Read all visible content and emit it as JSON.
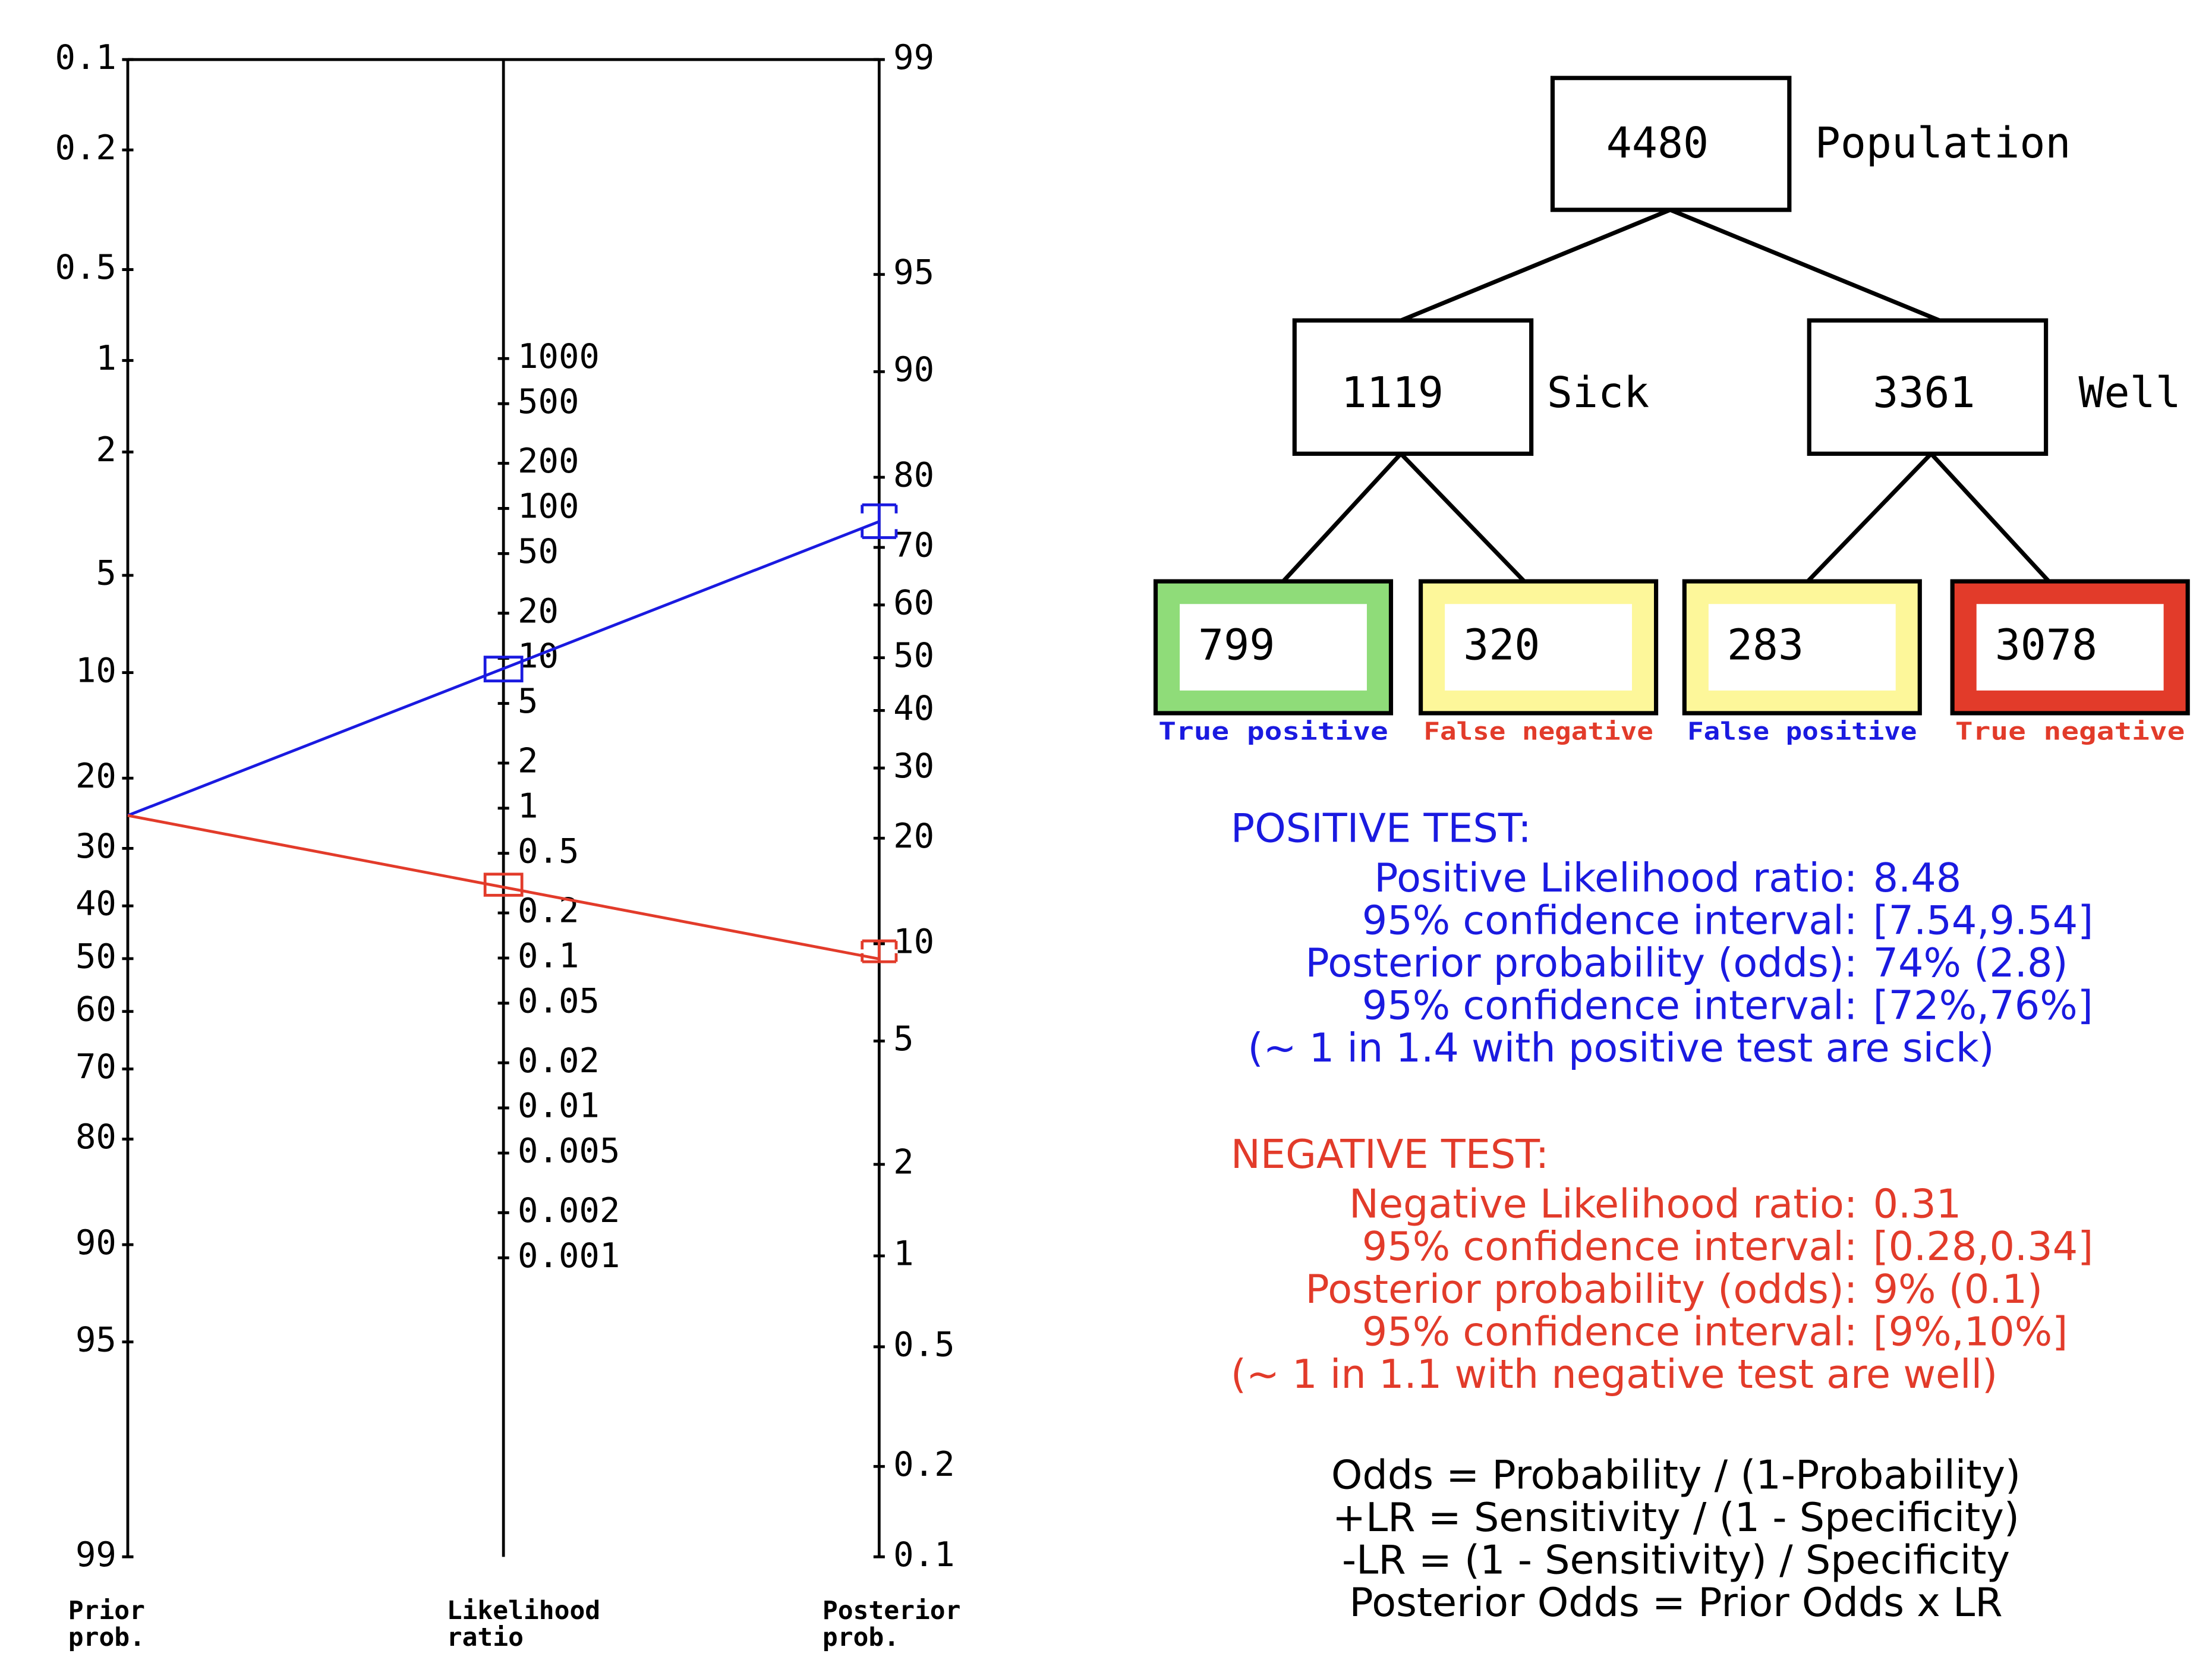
{
  "nomogram": {
    "prior_axis": {
      "ticks": [
        0.1,
        0.2,
        0.5,
        1,
        2,
        5,
        10,
        20,
        30,
        40,
        50,
        60,
        70,
        80,
        90,
        95,
        99
      ],
      "label": [
        "Prior",
        "prob."
      ]
    },
    "lr_axis": {
      "ticks": [
        1000,
        500,
        200,
        100,
        50,
        20,
        10,
        5,
        2,
        1,
        0.5,
        0.2,
        0.1,
        0.05,
        0.02,
        0.01,
        0.005,
        0.002,
        0.001
      ],
      "label": [
        "Likelihood",
        "ratio"
      ]
    },
    "posterior_axis": {
      "ticks": [
        99,
        95,
        90,
        80,
        70,
        60,
        50,
        40,
        30,
        20,
        10,
        5,
        2,
        1,
        0.5,
        0.2,
        0.1
      ],
      "label": [
        "Posterior",
        "prob."
      ]
    }
  },
  "tree": {
    "population": {
      "count": "4480",
      "label": "Population"
    },
    "sick": {
      "count": "1119",
      "label": "Sick"
    },
    "well": {
      "count": "3361",
      "label": "Well"
    },
    "leaves": [
      {
        "count": "799",
        "label": "True positive"
      },
      {
        "count": "320",
        "label": "False negative"
      },
      {
        "count": "283",
        "label": "False positive"
      },
      {
        "count": "3078",
        "label": "True negative"
      }
    ]
  },
  "positive_test": {
    "heading": "POSITIVE TEST:",
    "rows": [
      {
        "label": "Positive Likelihood ratio:",
        "value": "8.48"
      },
      {
        "label": "95% confidence interval:",
        "value": "[7.54,9.54]"
      },
      {
        "label": "Posterior probability (odds):",
        "value": "74% (2.8)"
      },
      {
        "label": "95% confidence interval:",
        "value": "[72%,76%]"
      }
    ],
    "note": "(~ 1 in 1.4 with positive test are sick)"
  },
  "negative_test": {
    "heading": "NEGATIVE TEST:",
    "rows": [
      {
        "label": "Negative Likelihood ratio:",
        "value": "0.31"
      },
      {
        "label": "95% confidence interval:",
        "value": "[0.28,0.34]"
      },
      {
        "label": "Posterior probability (odds):",
        "value": "9% (0.1)"
      },
      {
        "label": "95% confidence interval:",
        "value": "[9%,10%]"
      }
    ],
    "note": "(~ 1 in 1.1 with negative test are well)"
  },
  "formulas": [
    "Odds = Probability / (1-Probability)",
    "+LR = Sensitivity / (1 - Specificity)",
    "-LR = (1 - Sensitivity) / Specificity",
    "Posterior Odds = Prior Odds x LR"
  ]
}
